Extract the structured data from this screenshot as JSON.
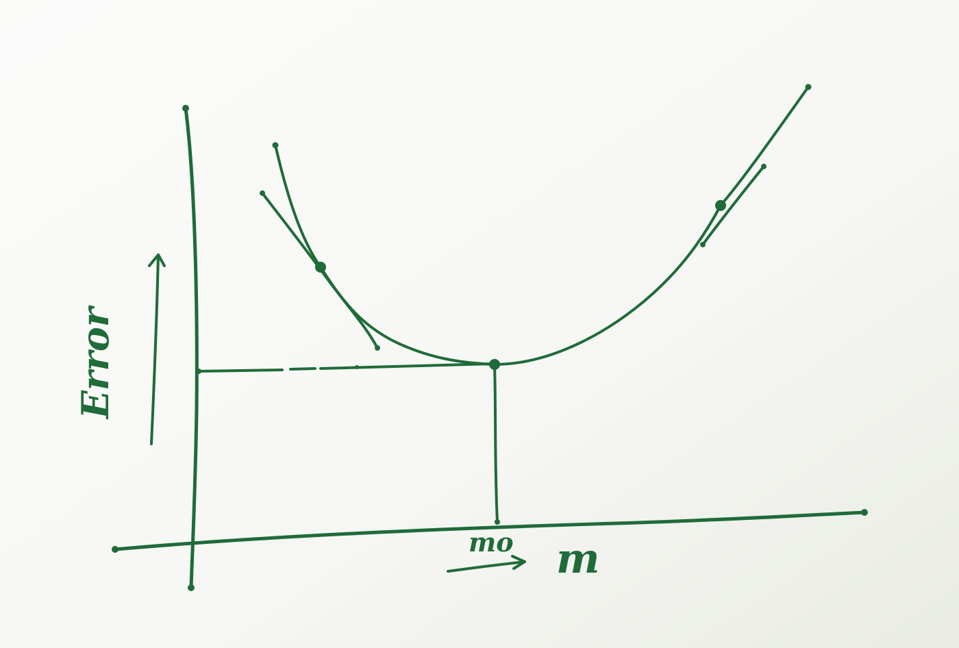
{
  "diagram": {
    "ink_color": "#1f6b3a",
    "paper_color": "#f7f7f4",
    "y_axis_label": "Error",
    "x_axis_label": "m",
    "minimum_label": "mo"
  }
}
